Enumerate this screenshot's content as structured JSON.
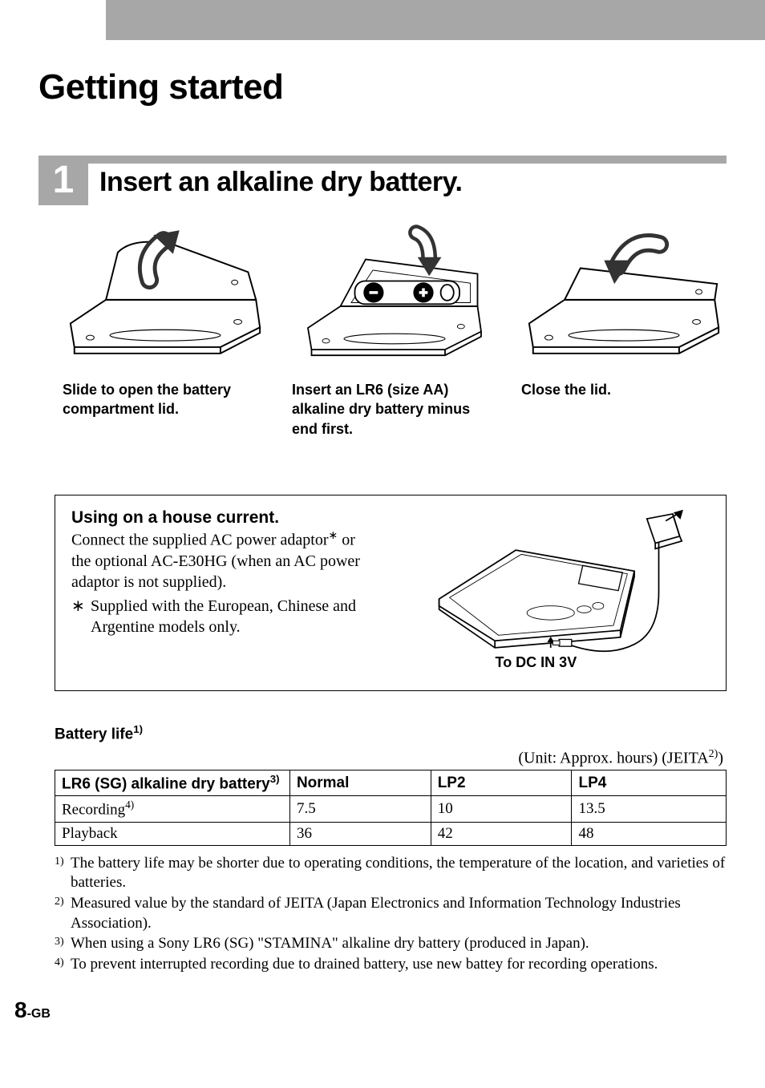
{
  "page": {
    "topbar_color": "#a7a7a7",
    "h1": "Getting started",
    "pagenum": "8",
    "pagenum_suffix": "-GB"
  },
  "step1": {
    "number": "1",
    "title": "Insert an alkaline dry battery.",
    "captions": [
      "Slide to open the battery compartment lid.",
      "Insert an LR6 (size AA) alkaline dry battery minus end first.",
      "Close the lid."
    ]
  },
  "box": {
    "title": "Using on a house current.",
    "text": "Connect the supplied AC power adaptor<sup>∗</sup> or the optional AC-E30HG (when an AC power adaptor is not supplied).",
    "note_marker": "∗",
    "note": "Supplied with the European, Chinese and Argentine models only.",
    "dc_label": "To DC IN 3V"
  },
  "battery_life": {
    "heading": "Battery life<sup>1)</sup>",
    "unit": "(Unit: Approx. hours) (JEITA<sup>2)</sup>)",
    "columns": [
      "LR6 (SG) alkaline dry battery<sup>3)</sup>",
      "Normal",
      "LP2",
      "LP4"
    ],
    "rows": [
      [
        "Recording<sup>4)</sup>",
        "7.5",
        "10",
        "13.5"
      ],
      [
        "Playback",
        "36",
        "42",
        "48"
      ]
    ],
    "footnotes": [
      {
        "num": "1)",
        "text": "The battery life may be shorter due to operating conditions, the temperature of the location, and varieties of batteries."
      },
      {
        "num": "2)",
        "text": "Measured value by the standard of JEITA (Japan Electronics and Information Technology Industries Association)."
      },
      {
        "num": "3)",
        "text": "When using a Sony LR6 (SG) \"STAMINA\" alkaline dry battery (produced in Japan)."
      },
      {
        "num": "4)",
        "text": "To prevent interrupted recording due to drained battery, use new battey for recording operations."
      }
    ]
  },
  "colors": {
    "gray": "#a7a7a7",
    "black": "#000000",
    "white": "#ffffff"
  }
}
